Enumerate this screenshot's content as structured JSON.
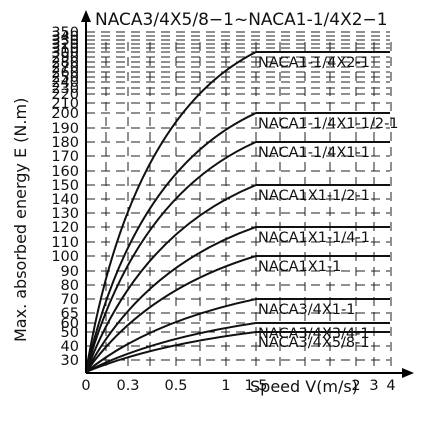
{
  "chart_data": {
    "type": "line",
    "title": "NACA3/4X5/8−1~NACA1-1/4X2−1",
    "xlabel": "Speed V(m/s)",
    "ylabel": "Max. absorbed energy E (N.m)",
    "grid": true,
    "x_ticks": [
      "0",
      "0.3",
      "0.5",
      "1",
      "1.5",
      "2",
      "3",
      "4"
    ],
    "y_ticks": [
      "30",
      "40",
      "50",
      "60",
      "65",
      "70",
      "80",
      "90",
      "100",
      "110",
      "120",
      "130",
      "140",
      "150",
      "160",
      "170",
      "180",
      "190",
      "200",
      "210",
      "220",
      "230",
      "240",
      "250",
      "260",
      "270",
      "280",
      "290",
      "300",
      "310",
      "320",
      "330",
      "340",
      "350"
    ],
    "series": [
      {
        "name": "NACA1-1/4X2-1",
        "plateau": 300,
        "x": [
          0,
          1.5,
          4
        ],
        "y": [
          20,
          300,
          300
        ]
      },
      {
        "name": "NACA1-1/4X1-1/2-1",
        "plateau": 200,
        "x": [
          0,
          1.5,
          4
        ],
        "y": [
          20,
          200,
          200
        ]
      },
      {
        "name": "NACA1-1/4X1-1",
        "plateau": 180,
        "x": [
          0,
          1.5,
          4
        ],
        "y": [
          20,
          180,
          180
        ]
      },
      {
        "name": "NACA1X1-1/2-1",
        "plateau": 150,
        "x": [
          0,
          1.5,
          4
        ],
        "y": [
          20,
          150,
          150
        ]
      },
      {
        "name": "NACA1X1-1/4-1",
        "plateau": 120,
        "x": [
          0,
          1.5,
          4
        ],
        "y": [
          20,
          120,
          120
        ]
      },
      {
        "name": "NACA1X1-1",
        "plateau": 100,
        "x": [
          0,
          1.5,
          4
        ],
        "y": [
          20,
          100,
          100
        ]
      },
      {
        "name": "NACA3/4X1-1",
        "plateau": 70,
        "x": [
          0,
          1.5,
          4
        ],
        "y": [
          20,
          70,
          70
        ]
      },
      {
        "name": "NACA3/4X3/4-1",
        "plateau": 60,
        "x": [
          0,
          1.5,
          4
        ],
        "y": [
          20,
          60,
          60
        ]
      },
      {
        "name": "NACA3/4X5/8-1",
        "plateau": 50,
        "x": [
          0,
          1.5,
          4
        ],
        "y": [
          20,
          50,
          50
        ]
      }
    ]
  }
}
